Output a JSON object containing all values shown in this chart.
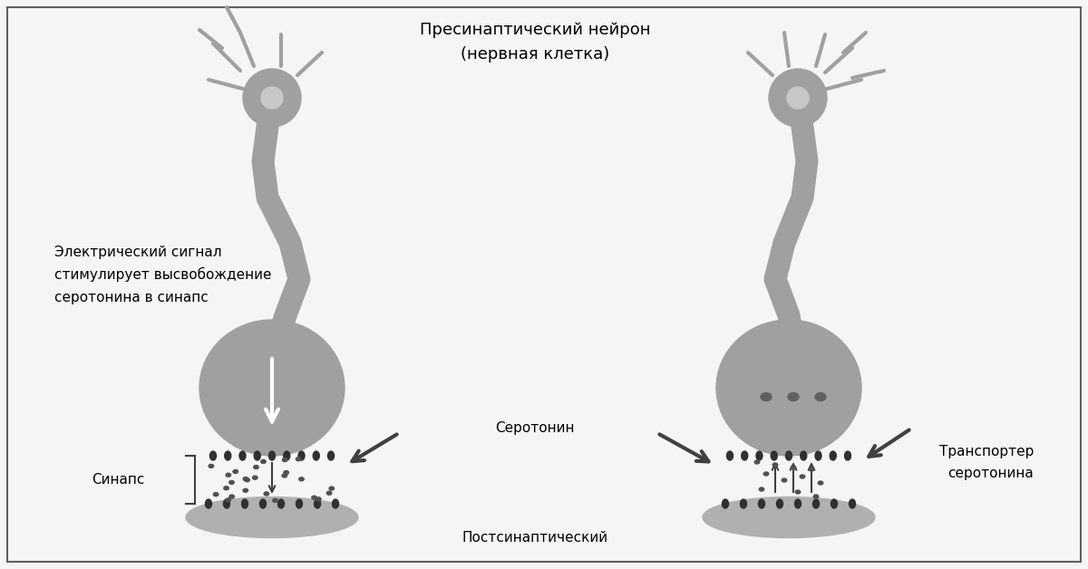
{
  "bg_color": "#f5f5f5",
  "neuron_color": "#a0a0a0",
  "dark_color": "#404040",
  "dot_color": "#505050",
  "receptor_color": "#303030",
  "title_left": "Пресинаптический нейрон",
  "title_left2": "(нервная клетка)",
  "label_electric": "Электрический сигнал",
  "label_electric2": "стимулирует высвобождение",
  "label_electric3": "серотонина в синапс",
  "label_synapse": "Синапс",
  "label_serotonin": "Серотонин",
  "label_postsynaptic": "Постсинаптический",
  "label_transporter": "Транспортер",
  "label_transporter2": "серотонина"
}
